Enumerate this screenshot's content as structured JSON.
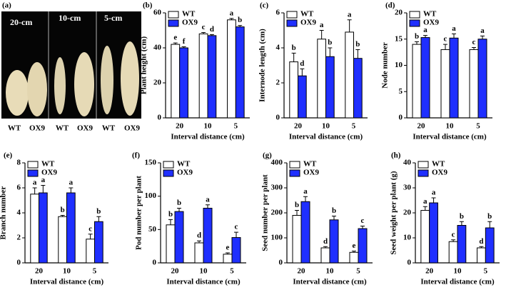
{
  "photo": {
    "panel": "(a)",
    "captions": [
      "20-cm",
      "10-cm",
      "5-cm"
    ],
    "genotypes": [
      "WT",
      "OX9",
      "WT",
      "OX9",
      "WT",
      "OX9"
    ]
  },
  "chart_data": [
    {
      "type": "bar",
      "panel": "(b)",
      "y_label": "Plant height (cm)",
      "x_label": "Interval distance (cm)",
      "categories": [
        "20",
        "10",
        "5"
      ],
      "ylim": [
        0,
        60
      ],
      "yticks": [
        0,
        20,
        40,
        60
      ],
      "legend": "upper left",
      "series": [
        {
          "name": "WT",
          "color": "#ffffff",
          "values": [
            42,
            48,
            56
          ],
          "errors": [
            0.8,
            0.8,
            0.8
          ],
          "letters": [
            "e",
            "c",
            "a"
          ]
        },
        {
          "name": "OX9",
          "color": "#1f2fff",
          "values": [
            40,
            47,
            52
          ],
          "errors": [
            0.6,
            0.6,
            0.8
          ],
          "letters": [
            "f",
            "d",
            "b"
          ]
        }
      ]
    },
    {
      "type": "bar",
      "panel": "(c)",
      "y_label": "Internode length (cm)",
      "x_label": "Interval distance (cm)",
      "categories": [
        "20",
        "10",
        "5"
      ],
      "ylim": [
        0,
        6
      ],
      "yticks": [
        0,
        2,
        4,
        6
      ],
      "legend": "upper left",
      "series": [
        {
          "name": "WT",
          "color": "#ffffff",
          "values": [
            3.2,
            4.5,
            4.9
          ],
          "errors": [
            0.5,
            0.5,
            0.7
          ],
          "letters": [
            "b",
            "a",
            "a"
          ]
        },
        {
          "name": "OX9",
          "color": "#1f2fff",
          "values": [
            2.4,
            3.5,
            3.4
          ],
          "errors": [
            0.4,
            0.5,
            0.5
          ],
          "letters": [
            "d",
            "b",
            "b"
          ]
        }
      ]
    },
    {
      "type": "bar",
      "panel": "(d)",
      "y_label": "Node number",
      "x_label": "Interval distance (cm)",
      "categories": [
        "20",
        "10",
        "5"
      ],
      "ylim": [
        0,
        20
      ],
      "yticks": [
        0,
        5,
        10,
        15,
        20
      ],
      "legend": "upper left",
      "series": [
        {
          "name": "WT",
          "color": "#ffffff",
          "values": [
            14,
            13,
            13
          ],
          "errors": [
            0.5,
            1,
            0.4
          ],
          "letters": [
            "b",
            "c",
            "c"
          ]
        },
        {
          "name": "OX9",
          "color": "#1f2fff",
          "values": [
            15.3,
            15.2,
            15
          ],
          "errors": [
            0.4,
            0.8,
            0.6
          ],
          "letters": [
            "a",
            "a",
            "a"
          ]
        }
      ]
    },
    {
      "type": "bar",
      "panel": "(e)",
      "y_label": "Branch number",
      "x_label": "Interval distance (cm)",
      "categories": [
        "20",
        "10",
        "5"
      ],
      "ylim": [
        0,
        8
      ],
      "yticks": [
        0,
        2,
        4,
        6,
        8
      ],
      "legend": "upper left",
      "series": [
        {
          "name": "WT",
          "color": "#ffffff",
          "values": [
            5.5,
            3.7,
            1.9
          ],
          "errors": [
            0.5,
            0.1,
            0.4
          ],
          "letters": [
            "a",
            "b",
            "c"
          ]
        },
        {
          "name": "OX9",
          "color": "#1f2fff",
          "values": [
            5.6,
            5.6,
            3.3
          ],
          "errors": [
            0.6,
            0.4,
            0.4
          ],
          "letters": [
            "a",
            "a",
            "b"
          ]
        }
      ]
    },
    {
      "type": "bar",
      "panel": "(f)",
      "y_label": "Pod number per plant",
      "x_label": "Interval distance (cm)",
      "categories": [
        "20",
        "10",
        "5"
      ],
      "ylim": [
        0,
        150
      ],
      "yticks": [
        0,
        50,
        100,
        150
      ],
      "legend": "upper left",
      "series": [
        {
          "name": "WT",
          "color": "#ffffff",
          "values": [
            57,
            30,
            13
          ],
          "errors": [
            8,
            3,
            2
          ],
          "letters": [
            "b",
            "d",
            "e"
          ]
        },
        {
          "name": "OX9",
          "color": "#1f2fff",
          "values": [
            77,
            82,
            38
          ],
          "errors": [
            5,
            5,
            8
          ],
          "letters": [
            "b",
            "a",
            "c"
          ]
        }
      ]
    },
    {
      "type": "bar",
      "panel": "(g)",
      "y_label": "Seed number per plant",
      "x_label": "Interval distance (cm)",
      "categories": [
        "20",
        "10",
        "5"
      ],
      "ylim": [
        0,
        400
      ],
      "yticks": [
        0,
        100,
        200,
        300,
        400
      ],
      "legend": "upper left",
      "series": [
        {
          "name": "WT",
          "color": "#ffffff",
          "values": [
            190,
            60,
            42
          ],
          "errors": [
            20,
            5,
            5
          ],
          "letters": [
            "b",
            "d",
            "e"
          ]
        },
        {
          "name": "OX9",
          "color": "#1f2fff",
          "values": [
            245,
            172,
            137
          ],
          "errors": [
            20,
            15,
            10
          ],
          "letters": [
            "a",
            "b",
            "c"
          ]
        }
      ]
    },
    {
      "type": "bar",
      "panel": "(h)",
      "y_label": "Seed weight per plant (g)",
      "x_label": "Interval distance (cm)",
      "categories": [
        "20",
        "10",
        "5"
      ],
      "ylim": [
        0,
        40
      ],
      "yticks": [
        0,
        10,
        20,
        30,
        40
      ],
      "legend": "upper left",
      "series": [
        {
          "name": "WT",
          "color": "#ffffff",
          "values": [
            21,
            8.5,
            6
          ],
          "errors": [
            1.5,
            0.7,
            0.5
          ],
          "letters": [
            "a",
            "c",
            "d"
          ]
        },
        {
          "name": "OX9",
          "color": "#1f2fff",
          "values": [
            24,
            15,
            14
          ],
          "errors": [
            2,
            1.5,
            2.5
          ],
          "letters": [
            "a",
            "b",
            "b"
          ]
        }
      ]
    }
  ]
}
